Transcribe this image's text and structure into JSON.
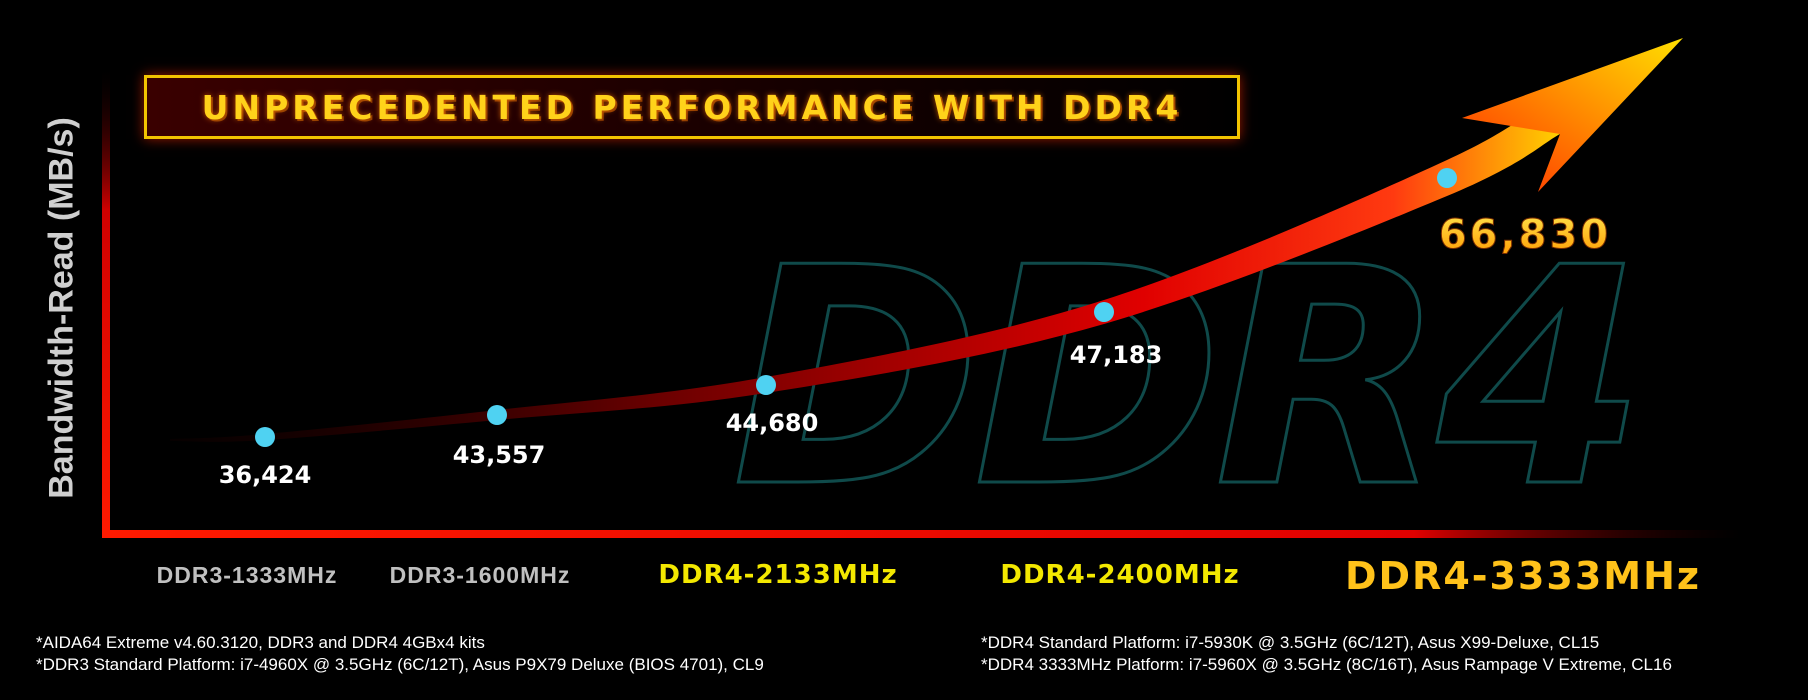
{
  "title": "UNPRECEDENTED PERFORMANCE WITH DDR4",
  "watermark": "DDR4",
  "ylabel": "Bandwidth-Read (MB/s)",
  "colors": {
    "axis": "#ff1a00",
    "point": "#4fd2f2",
    "ddr3_label": "#c0c0c0",
    "ddr4_label": "#f3e800",
    "highlight_label": "#ffc21a",
    "title": "#ffd21a"
  },
  "chart_data": {
    "type": "line",
    "title": "UNPRECEDENTED PERFORMANCE WITH DDR4",
    "xlabel": "",
    "ylabel": "Bandwidth-Read (MB/s)",
    "categories": [
      "DDR3-1333MHz",
      "DDR3-1600MHz",
      "DDR4-2133MHz",
      "DDR4-2400MHz",
      "DDR4-3333MHz"
    ],
    "series": [
      {
        "values": [
          36424,
          43557,
          44680,
          47183,
          66830
        ],
        "value_labels": [
          "36,424",
          "43,557",
          "44,680",
          "47,183",
          "66,830"
        ]
      }
    ],
    "grid": false,
    "legend": "none"
  },
  "footnotes": {
    "left": [
      "*AIDA64 Extreme v4.60.3120, DDR3 and DDR4 4GBx4 kits",
      "*DDR3 Standard Platform: i7-4960X @ 3.5GHz (6C/12T), Asus P9X79 Deluxe (BIOS 4701), CL9"
    ],
    "right": [
      "*DDR4 Standard Platform: i7-5930K @ 3.5GHz (6C/12T), Asus X99-Deluxe, CL15",
      "*DDR4 3333MHz Platform: i7-5960X @ 3.5GHz (8C/16T), Asus Rampage V Extreme, CL16"
    ]
  }
}
